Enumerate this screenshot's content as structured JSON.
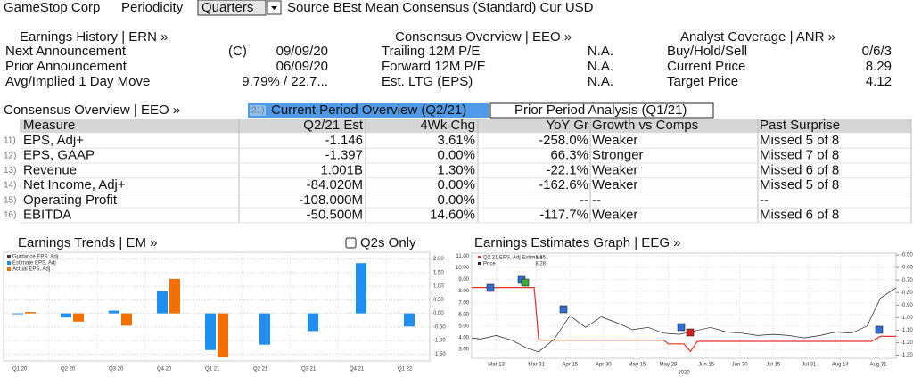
{
  "header": {
    "company": "GameStop Corp",
    "periodicity_label": "Periodicity",
    "periodicity": "Quarters",
    "source": "Source BEst Mean Consensus (Standard) Cur USD"
  },
  "earnings_history": {
    "title": "Earnings History | ERN »",
    "flag": "(C)",
    "rows": [
      {
        "label": "Next Announcement",
        "value": "09/09/20"
      },
      {
        "label": "Prior Announcement",
        "value": "06/09/20"
      },
      {
        "label": "Avg/Implied 1 Day Move",
        "value": "9.79% / 22.7..."
      }
    ]
  },
  "consensus": {
    "title": "Consensus Overview | EEO »",
    "rows": [
      {
        "label": "Trailing 12M P/E",
        "value": "N.A."
      },
      {
        "label": "Forward 12M P/E",
        "value": "N.A."
      },
      {
        "label": "Est. LTG (EPS)",
        "value": "N.A."
      }
    ]
  },
  "analyst": {
    "title": "Analyst Coverage | ANR »",
    "rows": [
      {
        "label": "Buy/Hold/Sell",
        "value": "0/6/3"
      },
      {
        "label": "Current Price",
        "value": "8.29"
      },
      {
        "label": "Target Price",
        "value": "4.12"
      }
    ]
  },
  "overview": {
    "title": "Consensus Overview | EEO »",
    "tab_number": "21)",
    "tabs": [
      "Current Period Overview (Q2/21)",
      "Prior Period Analysis (Q1/21)"
    ]
  },
  "table": {
    "columns": [
      "Measure",
      "Q2/21 Est",
      "4Wk Chg",
      "YoY Gr",
      "Growth vs Comps",
      "Past Surprise"
    ],
    "rows": [
      {
        "num": "11)",
        "cells": [
          "EPS, Adj+",
          "-1.146",
          "3.61%",
          "-258.0%",
          "Weaker",
          "Missed 5 of 8"
        ]
      },
      {
        "num": "12)",
        "cells": [
          "EPS, GAAP",
          "-1.397",
          "0.00%",
          "66.3%",
          "Stronger",
          "Missed 7 of 8"
        ]
      },
      {
        "num": "13)",
        "cells": [
          "Revenue",
          "1.001B",
          "1.30%",
          "-22.1%",
          "Weaker",
          "Missed 6 of 8"
        ]
      },
      {
        "num": "14)",
        "cells": [
          "Net Income, Adj+",
          "-84.020M",
          "0.00%",
          "-162.6%",
          "Weaker",
          "Missed 5 of 8"
        ]
      },
      {
        "num": "15)",
        "cells": [
          "Operating Profit",
          "-108.000M",
          "0.00%",
          "--",
          "--",
          "--"
        ]
      },
      {
        "num": "16)",
        "cells": [
          "EBITDA",
          "-50.500M",
          "14.60%",
          "-117.7%",
          "Weaker",
          "Missed 6 of 8"
        ]
      }
    ]
  },
  "chart_data": [
    {
      "type": "bar",
      "title": "Earnings Trends | EM »",
      "toggle": "Q2s Only",
      "categories": [
        "Q1 20",
        "Q2 20",
        "Q3 20",
        "Q4 20",
        "Q1 21",
        "Q2 21",
        "Q3 21",
        "Q4 21",
        "Q1 22"
      ],
      "series": [
        {
          "name": "Guidance EPS, Adj",
          "color": "#404040",
          "values": [
            null,
            null,
            null,
            null,
            null,
            null,
            null,
            null,
            null
          ]
        },
        {
          "name": "Estimate EPS, Adj",
          "color": "#1e8ff0",
          "values": [
            -0.03,
            -0.15,
            0.1,
            0.82,
            -1.35,
            -1.15,
            -0.65,
            1.85,
            -0.48
          ]
        },
        {
          "name": "Actual EPS, Adj",
          "color": "#f26f00",
          "values": [
            0.05,
            -0.3,
            -0.45,
            1.27,
            -1.6,
            null,
            null,
            null,
            null
          ]
        }
      ],
      "ylim": [
        -1.75,
        2.25
      ],
      "yticks": [
        {
          "value": 2,
          "label": "2.00"
        },
        {
          "value": 1.5,
          "label": "1.50"
        },
        {
          "value": 1,
          "label": "1.00"
        },
        {
          "value": 0.5,
          "label": "0.50"
        },
        {
          "value": 0,
          "label": "0.00"
        },
        {
          "value": -0.5,
          "label": "-0.50"
        },
        {
          "value": -1,
          "label": "-1.00"
        },
        {
          "value": -1.5,
          "label": "-1.50"
        }
      ],
      "grid": true
    },
    {
      "type": "line",
      "title": "Earnings Estimates Graph | EEG »",
      "x_label": "2020",
      "xlim": [
        "2020-03-02",
        "2020-09-08"
      ],
      "xticks": [
        {
          "value": "2020-03-13",
          "label": "Mar 13"
        },
        {
          "value": "2020-03-31",
          "label": "Mar 31"
        },
        {
          "value": "2020-04-15",
          "label": "Apr 15"
        },
        {
          "value": "2020-04-30",
          "label": "Apr 30"
        },
        {
          "value": "2020-05-15",
          "label": "May 15"
        },
        {
          "value": "2020-05-29",
          "label": "May 29"
        },
        {
          "value": "2020-06-15",
          "label": "Jun 15"
        },
        {
          "value": "2020-06-30",
          "label": "Jun 30"
        },
        {
          "value": "2020-07-15",
          "label": "Jul 15"
        },
        {
          "value": "2020-07-31",
          "label": "Jul 31"
        },
        {
          "value": "2020-08-14",
          "label": "Aug 14"
        },
        {
          "value": "2020-08-31",
          "label": "Aug 31"
        }
      ],
      "ylim": [
        2.25,
        11.25
      ],
      "yticks": [
        {
          "value": 11,
          "label": "11.00"
        },
        {
          "value": 10,
          "label": "10.00"
        },
        {
          "value": 9,
          "label": "9.00"
        },
        {
          "value": 8,
          "label": "8.00"
        },
        {
          "value": 7,
          "label": "7.00"
        },
        {
          "value": 6,
          "label": "6.00"
        },
        {
          "value": 5,
          "label": "5.00"
        },
        {
          "value": 4,
          "label": "4.00"
        },
        {
          "value": 3,
          "label": "3.00"
        }
      ],
      "y2lim": [
        -1.325,
        -0.485
      ],
      "y2ticks": [
        {
          "value": -0.5,
          "label": "-0.50"
        },
        {
          "value": -0.6,
          "label": "-0.60"
        },
        {
          "value": -0.7,
          "label": "-0.70"
        },
        {
          "value": -0.8,
          "label": "-0.80"
        },
        {
          "value": -0.9,
          "label": "-0.90"
        },
        {
          "value": -1,
          "label": "-1.00"
        },
        {
          "value": -1.1,
          "label": "-1.10"
        },
        {
          "value": -1.2,
          "label": "-1.20"
        },
        {
          "value": -1.3,
          "label": "-1.30"
        }
      ],
      "grid": true,
      "series": [
        {
          "name": "Q2 21 EPS, Adj Estimate",
          "color": "#e8302a",
          "axis": "y2",
          "x": [
            "2020-03-02",
            "2020-03-30",
            "2020-04-01",
            "2020-05-27",
            "2020-05-29",
            "2020-06-05",
            "2020-06-08",
            "2020-06-11",
            "2020-08-28",
            "2020-09-01",
            "2020-09-08"
          ],
          "values": [
            -0.76,
            -0.76,
            -1.18,
            -1.18,
            -1.21,
            -1.21,
            -1.27,
            -1.19,
            -1.19,
            -1.15,
            -1.15
          ]
        },
        {
          "name": "Price",
          "color": "#222222",
          "x": [
            "2020-03-02",
            "2020-03-06",
            "2020-03-13",
            "2020-03-20",
            "2020-03-27",
            "2020-04-01",
            "2020-04-08",
            "2020-04-15",
            "2020-04-22",
            "2020-04-29",
            "2020-05-06",
            "2020-05-13",
            "2020-05-20",
            "2020-05-27",
            "2020-06-03",
            "2020-06-10",
            "2020-06-17",
            "2020-06-24",
            "2020-07-01",
            "2020-07-08",
            "2020-07-15",
            "2020-07-22",
            "2020-07-29",
            "2020-08-05",
            "2020-08-12",
            "2020-08-19",
            "2020-08-26",
            "2020-09-01",
            "2020-09-08"
          ],
          "values": [
            4.0,
            3.9,
            4.2,
            3.8,
            3.1,
            2.8,
            3.9,
            5.9,
            4.9,
            5.8,
            5.3,
            4.7,
            4.9,
            4.4,
            4.3,
            4.6,
            4.9,
            4.5,
            4.4,
            4.2,
            4.3,
            4.2,
            4.0,
            4.2,
            4.5,
            4.4,
            5.0,
            7.4,
            8.28
          ]
        }
      ]
    }
  ]
}
